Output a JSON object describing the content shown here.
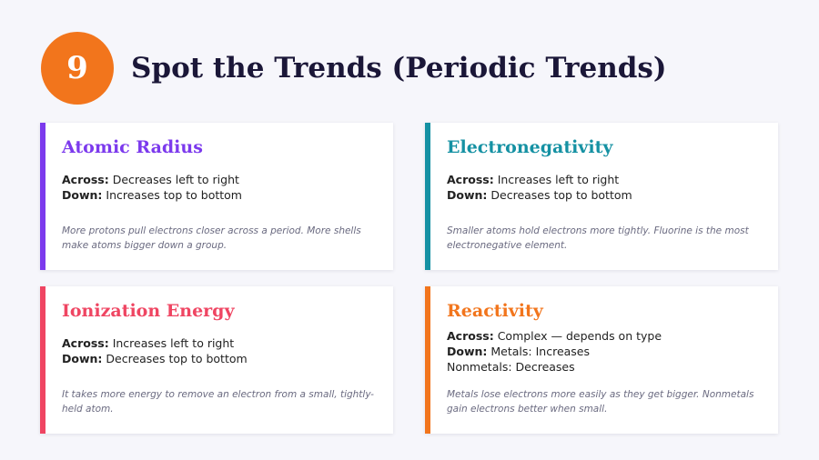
{
  "header": {
    "number": "9",
    "title": "Spot the Trends (Periodic Trends)"
  },
  "colors": {
    "badge": "#f2751c",
    "purple": "#7c3aed",
    "teal": "#1591a3",
    "pink": "#ef4562",
    "orange": "#f2751c"
  },
  "cards": [
    {
      "title": "Atomic Radius",
      "lines": [
        {
          "label": "Across:",
          "text": " Decreases left to right"
        },
        {
          "label": "Down:",
          "text": " Increases top to bottom"
        }
      ],
      "note": "More protons pull electrons closer across a period. More shells make atoms bigger down a group."
    },
    {
      "title": "Electronegativity",
      "lines": [
        {
          "label": "Across:",
          "text": " Increases left to right"
        },
        {
          "label": "Down:",
          "text": " Decreases top to bottom"
        }
      ],
      "note": "Smaller atoms hold electrons more tightly. Fluorine is the most electronegative element."
    },
    {
      "title": "Ionization Energy",
      "lines": [
        {
          "label": "Across:",
          "text": " Increases left to right"
        },
        {
          "label": "Down:",
          "text": " Decreases top to bottom"
        }
      ],
      "note": "It takes more energy to remove an electron from a small, tightly-held atom."
    },
    {
      "title": "Reactivity",
      "lines": [
        {
          "label": "Across:",
          "text": " Complex — depends on type"
        },
        {
          "label": "Down:",
          "text": " Metals: Increases"
        },
        {
          "label": "",
          "text": "Nonmetals: Decreases"
        }
      ],
      "note": "Metals lose electrons more easily as they get bigger. Nonmetals gain electrons better when small."
    }
  ]
}
